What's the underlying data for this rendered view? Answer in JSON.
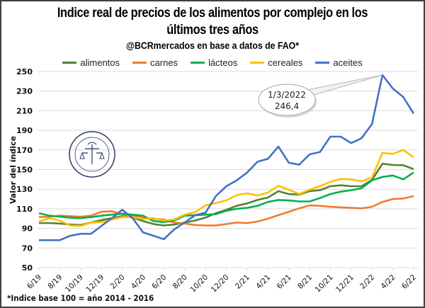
{
  "chart_data": {
    "type": "line",
    "title": "Indice real de precios de los alimentos por complejo en los últimos tres años",
    "title_line1": "Indice real de precios de los alimentos por complejo en los",
    "title_line2": "últimos tres años",
    "subtitle": "@BCRmercados en base a datos de FAO*",
    "xlabel": "",
    "ylabel": "Valor del índice",
    "ylim": [
      50,
      250
    ],
    "yticks": [
      50,
      70,
      90,
      110,
      130,
      150,
      170,
      190,
      210,
      230,
      250
    ],
    "grid": true,
    "legend_position": "top-center",
    "x": [
      "6/19",
      "7/19",
      "8/19",
      "9/19",
      "10/19",
      "11/19",
      "12/19",
      "1/20",
      "2/20",
      "3/20",
      "4/20",
      "5/20",
      "6/20",
      "7/20",
      "8/20",
      "9/20",
      "10/20",
      "11/20",
      "12/20",
      "1/21",
      "2/21",
      "3/21",
      "4/21",
      "5/21",
      "6/21",
      "7/21",
      "8/21",
      "9/21",
      "10/21",
      "11/21",
      "12/21",
      "1/22",
      "2/22",
      "3/22",
      "4/22",
      "5/22",
      "6/22"
    ],
    "xtick_labels": [
      "6/19",
      "8/19",
      "10/19",
      "12/19",
      "2/20",
      "4/20",
      "6/20",
      "8/20",
      "10/20",
      "12/20",
      "2/21",
      "4/21",
      "6/21",
      "8/21",
      "10/21",
      "12/21",
      "2/22",
      "4/22",
      "6/22"
    ],
    "series": [
      {
        "name": "alimentos",
        "color": "#548235",
        "values": [
          95.5,
          95.5,
          95,
          94,
          93.5,
          96,
          98.5,
          100.5,
          102.5,
          101,
          97.5,
          94.5,
          93,
          94,
          96,
          98,
          101,
          105.5,
          109,
          113,
          115.5,
          119,
          121.5,
          128,
          125,
          124.5,
          128,
          129,
          133,
          134,
          133,
          133,
          139.5,
          156,
          154.7,
          154.5,
          150.5
        ]
      },
      {
        "name": "carnes",
        "color": "#ED7D31",
        "values": [
          101.5,
          102,
          103,
          102.5,
          102,
          103,
          107,
          107.5,
          104.5,
          103,
          101,
          100,
          99,
          96,
          95,
          93.5,
          93,
          93,
          94.5,
          96,
          95.5,
          97,
          100,
          103.5,
          107,
          110.5,
          113.5,
          113,
          112,
          111.5,
          111,
          110.5,
          112,
          117,
          120,
          120.5,
          123
        ]
      },
      {
        "name": "lácteos",
        "color": "#00B050",
        "values": [
          105.5,
          103,
          102,
          101,
          100.5,
          101.5,
          103,
          104,
          105,
          104,
          103,
          97.5,
          96.5,
          98,
          103,
          103.5,
          104,
          104.5,
          108,
          110,
          111,
          113,
          117,
          119,
          118.5,
          117.5,
          117.5,
          121,
          125,
          127.5,
          129,
          131,
          139,
          142.5,
          144,
          140,
          147
        ]
      },
      {
        "name": "cereales",
        "color": "#FFC000",
        "values": [
          97,
          100.5,
          98,
          93,
          92.5,
          96,
          96.5,
          99,
          101.5,
          101.5,
          99.5,
          100.5,
          98,
          99,
          104,
          106.5,
          113.5,
          116,
          118.5,
          124,
          125.8,
          123.6,
          126.5,
          133.5,
          129.5,
          125,
          129.5,
          133,
          137.5,
          140.5,
          140,
          138,
          142,
          167,
          166,
          170,
          162.5
        ]
      },
      {
        "name": "aceites",
        "color": "#4472C4",
        "values": [
          78,
          78,
          78,
          82.5,
          84.5,
          84.5,
          92.5,
          100.5,
          109,
          100.5,
          86,
          82.5,
          79,
          89,
          96,
          103.5,
          106,
          123,
          133,
          139,
          147,
          158,
          161,
          173.5,
          157,
          155,
          165.5,
          168,
          183.6,
          183.6,
          177,
          182,
          196.5,
          246.4,
          232.7,
          224,
          207
        ]
      }
    ],
    "annotations": [
      {
        "series": "aceites",
        "x": "3/22",
        "line1": "1/3/2022",
        "line2": "246,4",
        "value": 246.4
      }
    ],
    "footnote": "*Indice base 100 = año 2014 - 2016",
    "watermark": "BOLSA DE COMERCIO DE ROSARIO"
  }
}
